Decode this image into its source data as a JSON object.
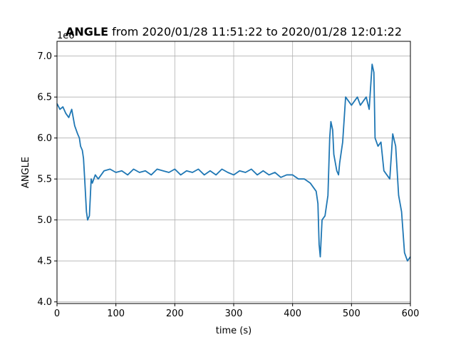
{
  "chart_data": {
    "type": "line",
    "title_bold": "ANGLE",
    "title_rest": " from 2020/01/28 11:51:22 to 2020/01/28 12:01:22",
    "xlabel": "time (s)",
    "ylabel": "ANGLE",
    "y_offset_label": "1e6",
    "xlim": [
      0,
      600
    ],
    "ylim": [
      3.98,
      7.18
    ],
    "x_ticks": [
      0,
      100,
      200,
      300,
      400,
      500,
      600
    ],
    "x_tick_labels": [
      "0",
      "100",
      "200",
      "300",
      "400",
      "500",
      "600"
    ],
    "y_ticks": [
      4.0,
      4.5,
      5.0,
      5.5,
      6.0,
      6.5,
      7.0
    ],
    "y_tick_labels": [
      "4.0",
      "4.5",
      "5.0",
      "5.5",
      "6.0",
      "6.5",
      "7.0"
    ],
    "grid": true,
    "line_color": "#1f77b4",
    "series": [
      {
        "x": [
          0,
          5,
          10,
          15,
          20,
          25,
          30,
          35,
          38,
          40,
          43,
          45,
          47,
          50,
          52,
          55,
          58,
          60,
          65,
          70,
          75,
          80,
          90,
          100,
          110,
          120,
          130,
          140,
          150,
          160,
          170,
          180,
          190,
          200,
          210,
          220,
          230,
          240,
          250,
          260,
          270,
          280,
          290,
          300,
          310,
          320,
          330,
          340,
          350,
          360,
          370,
          380,
          390,
          400,
          410,
          420,
          430,
          435,
          440,
          443,
          445,
          447,
          450,
          455,
          460,
          463,
          465,
          468,
          470,
          475,
          478,
          480,
          485,
          490,
          495,
          500,
          505,
          510,
          515,
          520,
          525,
          530,
          535,
          538,
          540,
          545,
          550,
          555,
          560,
          565,
          570,
          575,
          580,
          585,
          590,
          595,
          600
        ],
        "y": [
          6.42,
          6.35,
          6.38,
          6.3,
          6.25,
          6.35,
          6.15,
          6.05,
          6.0,
          5.9,
          5.85,
          5.75,
          5.5,
          5.1,
          5.0,
          5.05,
          5.5,
          5.45,
          5.55,
          5.5,
          5.55,
          5.6,
          5.62,
          5.58,
          5.6,
          5.55,
          5.62,
          5.58,
          5.6,
          5.55,
          5.62,
          5.6,
          5.58,
          5.62,
          5.55,
          5.6,
          5.58,
          5.62,
          5.55,
          5.6,
          5.55,
          5.62,
          5.58,
          5.55,
          5.6,
          5.58,
          5.62,
          5.55,
          5.6,
          5.55,
          5.58,
          5.52,
          5.55,
          5.55,
          5.5,
          5.5,
          5.45,
          5.4,
          5.35,
          5.2,
          4.7,
          4.55,
          5.0,
          5.05,
          5.3,
          6.0,
          6.2,
          6.1,
          5.8,
          5.6,
          5.55,
          5.7,
          5.95,
          6.5,
          6.45,
          6.4,
          6.45,
          6.5,
          6.4,
          6.45,
          6.5,
          6.35,
          6.9,
          6.8,
          6.0,
          5.9,
          5.95,
          5.6,
          5.55,
          5.5,
          6.05,
          5.9,
          5.3,
          5.1,
          4.6,
          4.5,
          4.55
        ]
      }
    ]
  }
}
